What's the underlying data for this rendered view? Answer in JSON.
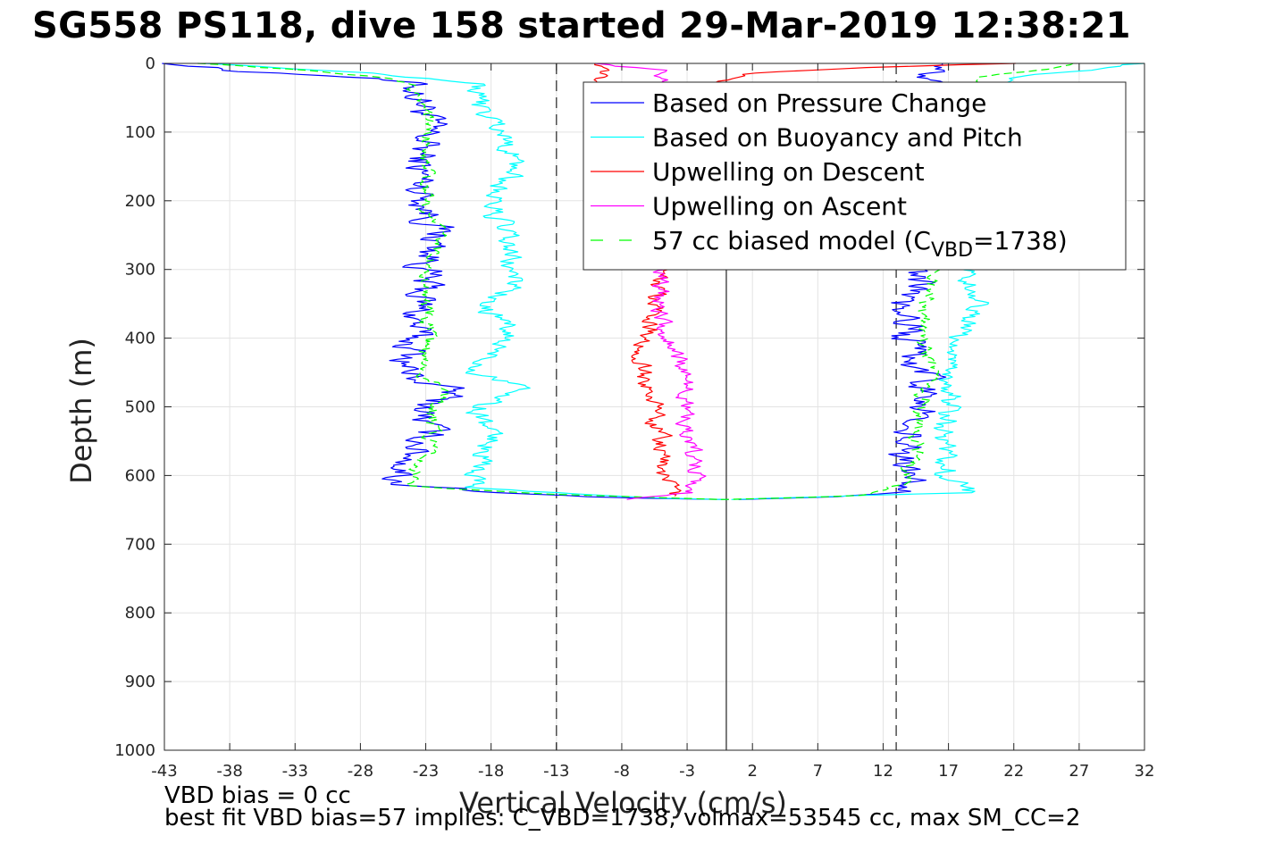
{
  "title": "SG558 PS118, dive 158 started 29-Mar-2019 12:38:21",
  "footer": {
    "line1": "VBD bias = 0 cc",
    "line2": "best fit VBD bias=57 implies: C_VBD=1738, volmax=53545 cc, max SM_CC=2"
  },
  "chart_data": {
    "type": "line",
    "xlabel": "Vertical Velocity (cm/s)",
    "ylabel": "Depth (m)",
    "xlim": [
      -43,
      32
    ],
    "ylim": [
      0,
      1000
    ],
    "y_reversed": true,
    "grid": true,
    "xticks": [
      -43,
      -38,
      -33,
      -28,
      -23,
      -18,
      -13,
      -8,
      -3,
      2,
      7,
      12,
      17,
      22,
      27,
      32
    ],
    "yticks": [
      0,
      100,
      200,
      300,
      400,
      500,
      600,
      700,
      800,
      900,
      1000
    ],
    "reference_lines": [
      {
        "x": -13,
        "style": "dashed"
      },
      {
        "x": 0,
        "style": "solid"
      },
      {
        "x": 13,
        "style": "dashed"
      }
    ],
    "legend": {
      "placement": "top-right",
      "entries": [
        {
          "label": "Based on Pressure Change",
          "color": "#0000ff",
          "dash": false
        },
        {
          "label": "Based on Buoyancy and Pitch",
          "color": "#00ffff",
          "dash": false
        },
        {
          "label": "Upwelling on Descent",
          "color": "#ff0000",
          "dash": false
        },
        {
          "label": "Upwelling on Ascent",
          "color": "#ff00ff",
          "dash": false
        },
        {
          "label": "57 cc biased model (C",
          "sub": "VBD",
          "after": "=1738)",
          "color": "#00ff00",
          "dash": true
        }
      ]
    },
    "series": [
      {
        "name": "Based on Pressure Change",
        "color": "#0000ff",
        "jitter": 1.2,
        "descent": [
          [
            0,
            -42
          ],
          [
            10,
            -38
          ],
          [
            20,
            -28
          ],
          [
            30,
            -24
          ],
          [
            60,
            -23
          ],
          [
            100,
            -23
          ],
          [
            150,
            -23.5
          ],
          [
            200,
            -23
          ],
          [
            250,
            -22
          ],
          [
            300,
            -23
          ],
          [
            350,
            -23.5
          ],
          [
            400,
            -24
          ],
          [
            450,
            -24.5
          ],
          [
            480,
            -21
          ],
          [
            500,
            -23
          ],
          [
            550,
            -23
          ],
          [
            600,
            -25
          ],
          [
            612,
            -25
          ],
          [
            625,
            -17
          ],
          [
            632,
            -10
          ],
          [
            635,
            0
          ]
        ],
        "ascent": [
          [
            635,
            0
          ],
          [
            630,
            10
          ],
          [
            620,
            13
          ],
          [
            600,
            14
          ],
          [
            550,
            14
          ],
          [
            500,
            15
          ],
          [
            450,
            15
          ],
          [
            400,
            13.5
          ],
          [
            350,
            14
          ],
          [
            300,
            15
          ],
          [
            250,
            14.5
          ],
          [
            200,
            15
          ],
          [
            150,
            14
          ],
          [
            100,
            14.5
          ],
          [
            50,
            15
          ],
          [
            20,
            16
          ],
          [
            0,
            18
          ]
        ]
      },
      {
        "name": "Based on Buoyancy and Pitch",
        "color": "#00ffff",
        "jitter": 0.8,
        "descent": [
          [
            0,
            -40
          ],
          [
            10,
            -30
          ],
          [
            20,
            -24
          ],
          [
            30,
            -19
          ],
          [
            60,
            -19
          ],
          [
            100,
            -17
          ],
          [
            150,
            -16
          ],
          [
            200,
            -18
          ],
          [
            250,
            -17
          ],
          [
            300,
            -16.5
          ],
          [
            330,
            -16
          ],
          [
            350,
            -19
          ],
          [
            380,
            -17
          ],
          [
            400,
            -17
          ],
          [
            450,
            -19
          ],
          [
            470,
            -15
          ],
          [
            500,
            -19
          ],
          [
            550,
            -18
          ],
          [
            600,
            -19
          ],
          [
            618,
            -19
          ],
          [
            626,
            -12
          ],
          [
            633,
            -5
          ],
          [
            635,
            0
          ]
        ],
        "ascent": [
          [
            635,
            0
          ],
          [
            628,
            12
          ],
          [
            625,
            19
          ],
          [
            600,
            17
          ],
          [
            550,
            17
          ],
          [
            500,
            17
          ],
          [
            450,
            17
          ],
          [
            400,
            18
          ],
          [
            350,
            19
          ],
          [
            300,
            18
          ],
          [
            250,
            18
          ],
          [
            200,
            18
          ],
          [
            150,
            18
          ],
          [
            100,
            19
          ],
          [
            50,
            20
          ],
          [
            20,
            22
          ],
          [
            0,
            32
          ]
        ]
      },
      {
        "name": "57 cc biased model",
        "color": "#00ff00",
        "dash": true,
        "jitter": 0.5,
        "descent": [
          [
            0,
            -40
          ],
          [
            10,
            -32
          ],
          [
            20,
            -26
          ],
          [
            30,
            -24
          ],
          [
            60,
            -23
          ],
          [
            100,
            -23
          ],
          [
            150,
            -23
          ],
          [
            200,
            -23
          ],
          [
            250,
            -22
          ],
          [
            300,
            -23
          ],
          [
            350,
            -23
          ],
          [
            400,
            -23
          ],
          [
            450,
            -23.5
          ],
          [
            480,
            -21
          ],
          [
            500,
            -22.5
          ],
          [
            550,
            -22.5
          ],
          [
            600,
            -24
          ],
          [
            615,
            -24
          ],
          [
            626,
            -15
          ],
          [
            635,
            0
          ]
        ],
        "ascent": [
          [
            635,
            0
          ],
          [
            630,
            10
          ],
          [
            620,
            13
          ],
          [
            600,
            14
          ],
          [
            550,
            14.5
          ],
          [
            500,
            15
          ],
          [
            450,
            15.5
          ],
          [
            400,
            15
          ],
          [
            350,
            15.5
          ],
          [
            300,
            15.5
          ],
          [
            250,
            15
          ],
          [
            200,
            15
          ],
          [
            150,
            15
          ],
          [
            100,
            16
          ],
          [
            50,
            17
          ],
          [
            20,
            20
          ],
          [
            0,
            27
          ]
        ]
      },
      {
        "name": "Upwelling on Descent",
        "color": "#ff0000",
        "jitter": 0.6,
        "descent": [
          [
            0,
            -10
          ],
          [
            300,
            -5
          ],
          [
            350,
            -5.5
          ],
          [
            400,
            -6
          ],
          [
            450,
            -6.5
          ],
          [
            500,
            -5.5
          ],
          [
            550,
            -5
          ],
          [
            600,
            -5
          ],
          [
            630,
            -4
          ]
        ],
        "ascent": [
          [
            0,
            22
          ],
          [
            5,
            12
          ],
          [
            15,
            2
          ],
          [
            25,
            -1
          ],
          [
            40,
            -2
          ]
        ]
      },
      {
        "name": "Upwelling on Ascent",
        "color": "#ff00ff",
        "jitter": 0.6,
        "descent": [
          [
            0,
            -10
          ],
          [
            10,
            -5
          ],
          [
            30,
            -5
          ],
          [
            50,
            -5
          ]
        ],
        "ascent": [
          [
            300,
            -5
          ],
          [
            350,
            -5
          ],
          [
            400,
            -4.5
          ],
          [
            450,
            -3
          ],
          [
            500,
            -3
          ],
          [
            550,
            -3
          ],
          [
            600,
            -2
          ],
          [
            625,
            -3
          ],
          [
            635,
            -8
          ]
        ]
      }
    ]
  }
}
